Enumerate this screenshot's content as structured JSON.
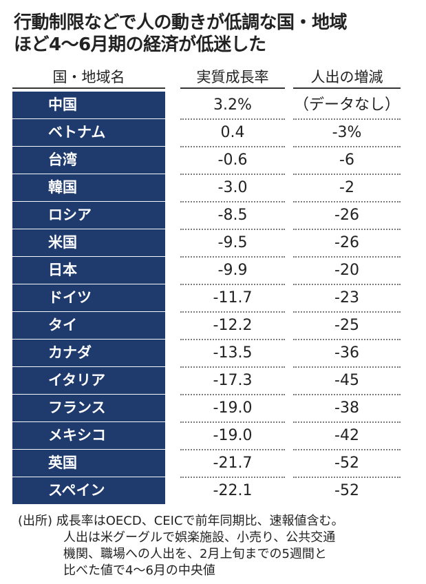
{
  "title": [
    "行動制限などで人の動きが低調な国・地域",
    "ほど4～6月期の経済が低迷した"
  ],
  "table": {
    "header": [
      "国・地域名",
      "実質成長率",
      "人出の増減"
    ],
    "rows": [
      [
        "中国",
        "3.2%",
        "（データなし）"
      ],
      [
        "ベトナム",
        "0.4",
        "-3%"
      ],
      [
        "台湾",
        "-0.6",
        "-6"
      ],
      [
        "韓国",
        "-3.0",
        "-2"
      ],
      [
        "ロシア",
        "-8.5",
        "-26"
      ],
      [
        "米国",
        "-9.5",
        "-26"
      ],
      [
        "日本",
        "-9.9",
        "-20"
      ],
      [
        "ドイツ",
        "-11.7",
        "-23"
      ],
      [
        "タイ",
        "-12.2",
        "-25"
      ],
      [
        "カナダ",
        "-13.5",
        "-36"
      ],
      [
        "イタリア",
        "-17.3",
        "-45"
      ],
      [
        "フランス",
        "-19.0",
        "-38"
      ],
      [
        "メキシコ",
        "-19.0",
        "-42"
      ],
      [
        "英国",
        "-21.7",
        "-52"
      ],
      [
        "スペイン",
        "-22.1",
        "-52"
      ]
    ]
  },
  "note": [
    "(出所) 成長率はOECD、CEICで前年同期比、速報値含む。",
    "人出は米グーグルで娯楽施設、小売り、公共交通",
    "機関、職場への人出を、2月上旬までの5週間と",
    "比べた値で4～6月の中央値"
  ]
}
